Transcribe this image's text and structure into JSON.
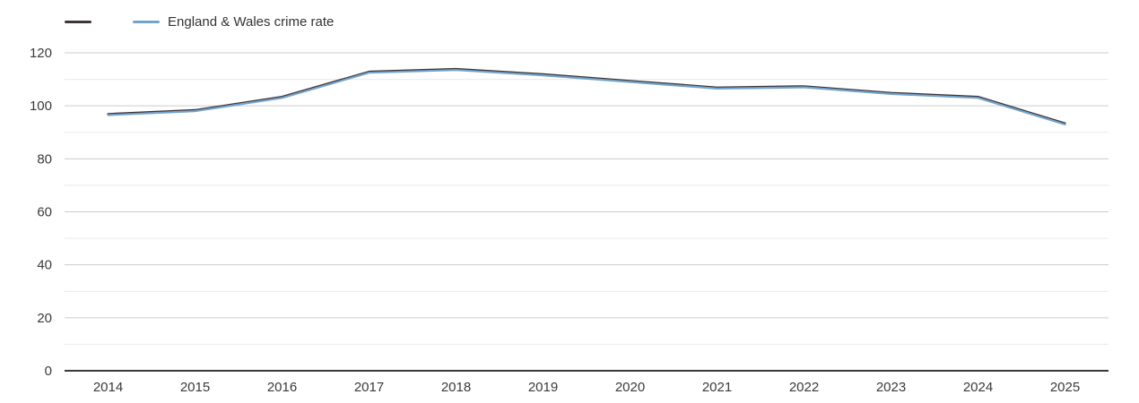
{
  "page": {
    "background": "#ffffff"
  },
  "legend": {
    "items": [
      {
        "label": "",
        "color": "#3d3539"
      },
      {
        "label": "England & Wales crime rate",
        "color": "#74a3c9"
      }
    ]
  },
  "chart_data": {
    "type": "line",
    "title": "",
    "xlabel": "",
    "ylabel": "",
    "categories": [
      "2014",
      "2015",
      "2016",
      "2017",
      "2018",
      "2019",
      "2020",
      "2021",
      "2022",
      "2023",
      "2024",
      "2025"
    ],
    "series": [
      {
        "name": "",
        "color": "#3d3539",
        "values": [
          96.5,
          98,
          103,
          112.5,
          113.5,
          111.5,
          109,
          106.5,
          107,
          104.5,
          103,
          93
        ]
      },
      {
        "name": "England & Wales crime rate",
        "color": "#74a3c9",
        "values": [
          96.5,
          98,
          103,
          112.5,
          113.5,
          111.5,
          109,
          106.5,
          107,
          104.5,
          103,
          93
        ]
      }
    ],
    "ylim": [
      0,
      120
    ],
    "yticks": [
      0,
      20,
      40,
      60,
      80,
      100,
      120
    ],
    "minor_yticks": [
      10,
      30,
      50,
      70,
      90,
      110
    ],
    "grid": true,
    "legend_position": "top-left"
  },
  "axis_style": {
    "major_grid_color": "#cccccc",
    "minor_grid_color": "#e9e9e9",
    "axis_line_color": "#3a3a3a",
    "tick_label_color": "#3a3a3a"
  }
}
